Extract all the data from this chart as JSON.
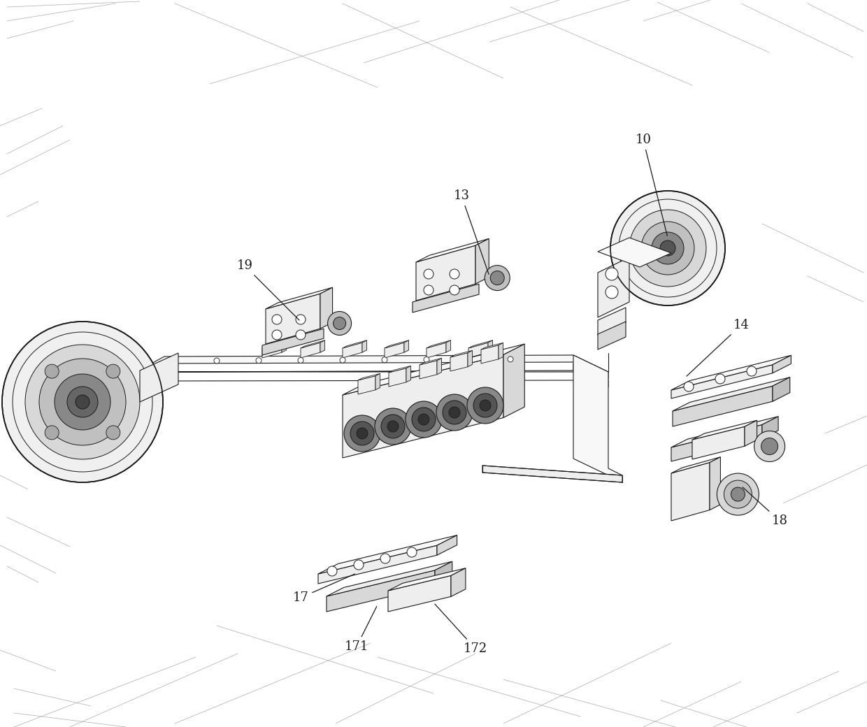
{
  "bg_color": "#ffffff",
  "line_color": "#1a1a1a",
  "lw": 0.8,
  "lw_thick": 1.2,
  "fig_width": 12.4,
  "fig_height": 10.4,
  "dpi": 100,
  "label_fontsize": 13,
  "border_color": "#333333",
  "fill_light": "#f8f8f8",
  "fill_mid": "#eeeeee",
  "fill_dark": "#d8d8d8",
  "fill_darker": "#c0c0c0",
  "fill_black": "#555555",
  "bg_line_color": "#aaaaaa",
  "bg_line_lw": 0.5
}
